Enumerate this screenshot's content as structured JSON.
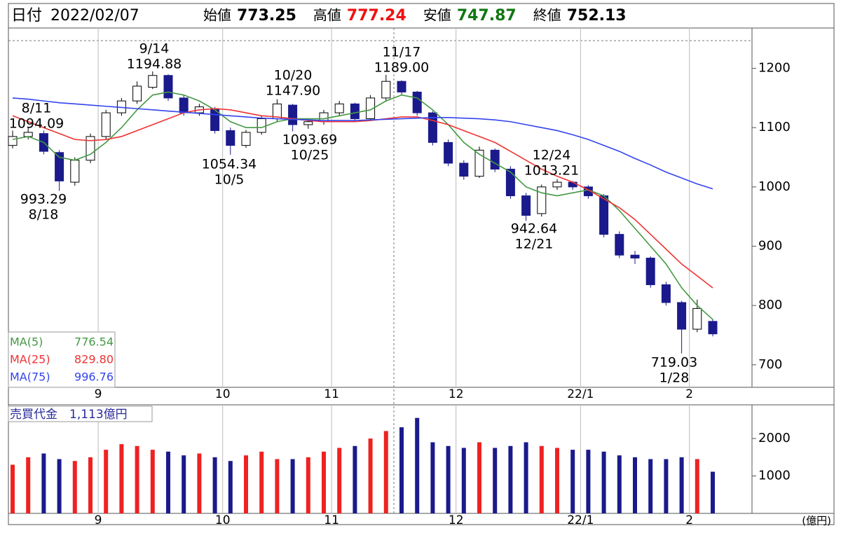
{
  "header": {
    "date_label": "日付",
    "date": "2022/02/07",
    "fields": [
      {
        "label": "始値",
        "value": 773.25,
        "color": "#000000"
      },
      {
        "label": "高値",
        "value": 777.24,
        "color": "#ee1111"
      },
      {
        "label": "安値",
        "value": 747.87,
        "color": "#117711"
      },
      {
        "label": "終値",
        "value": 752.13,
        "color": "#000000"
      }
    ]
  },
  "chart_data": [
    {
      "type": "candlestick",
      "categories": [
        null,
        null,
        null,
        null,
        null,
        null,
        "9",
        null,
        null,
        null,
        null,
        null,
        null,
        null,
        "10",
        null,
        null,
        null,
        null,
        null,
        null,
        "11",
        null,
        null,
        null,
        null,
        null,
        null,
        null,
        "12",
        null,
        null,
        null,
        null,
        null,
        null,
        null,
        "22/1",
        null,
        null,
        null,
        null,
        null,
        null,
        "2",
        null
      ],
      "open": [
        1070,
        1085,
        1090,
        1058,
        1008,
        1045,
        1085,
        1125,
        1145,
        1168,
        1188,
        1150,
        1125,
        1132,
        1095,
        1070,
        1092,
        1115,
        1138,
        1105,
        1110,
        1125,
        1140,
        1115,
        1150,
        1178,
        1160,
        1125,
        1075,
        1040,
        1018,
        1062,
        1030,
        985,
        955,
        1000,
        1008,
        1000,
        985,
        920,
        885,
        880,
        835,
        805,
        760,
        773.25
      ],
      "high": [
        1095,
        1100,
        1095,
        1062,
        1050,
        1090,
        1130,
        1150,
        1178,
        1194.88,
        1190,
        1155,
        1140,
        1135,
        1100,
        1096,
        1120,
        1147.9,
        1140,
        1115,
        1130,
        1145,
        1142,
        1155,
        1189,
        1180,
        1162,
        1128,
        1080,
        1045,
        1068,
        1065,
        1035,
        990,
        1004,
        1013.21,
        1010,
        1003,
        988,
        925,
        892,
        883,
        840,
        808,
        810,
        777.24
      ],
      "low": [
        1065,
        1080,
        1055,
        993.29,
        1002,
        1040,
        1080,
        1120,
        1140,
        1165,
        1145,
        1120,
        1120,
        1090,
        1054.34,
        1066,
        1088,
        1110,
        1093.69,
        1098,
        1105,
        1120,
        1110,
        1112,
        1145,
        1155,
        1120,
        1070,
        1035,
        1012,
        1015,
        1025,
        980,
        942.64,
        950,
        995,
        995,
        980,
        915,
        880,
        870,
        830,
        800,
        719.03,
        755,
        747.87
      ],
      "close": [
        1085,
        1092,
        1060,
        1010,
        1045,
        1085,
        1125,
        1145,
        1170,
        1188,
        1150,
        1125,
        1135,
        1095,
        1070,
        1092,
        1115,
        1140,
        1105,
        1110,
        1125,
        1140,
        1115,
        1150,
        1178,
        1160,
        1125,
        1075,
        1040,
        1018,
        1062,
        1030,
        985,
        952,
        1000,
        1008,
        1000,
        985,
        920,
        885,
        880,
        835,
        805,
        760,
        795,
        752.13
      ],
      "up_color": "#ffffff",
      "down_color": "#1a1a8c",
      "series": [
        {
          "name": "MA(5)",
          "color": "#449944",
          "legend_value": "776.54",
          "values": [
            1080,
            1085,
            1075,
            1050,
            1045,
            1055,
            1075,
            1100,
            1130,
            1155,
            1160,
            1155,
            1145,
            1130,
            1110,
            1100,
            1100,
            1110,
            1115,
            1115,
            1115,
            1120,
            1125,
            1130,
            1145,
            1155,
            1150,
            1130,
            1105,
            1075,
            1055,
            1040,
            1025,
            1000,
            990,
            985,
            990,
            995,
            985,
            960,
            930,
            900,
            870,
            830,
            800,
            776.54
          ]
        },
        {
          "name": "MA(25)",
          "color": "#ee3333",
          "legend_value": "829.80",
          "values": [
            1120,
            1110,
            1100,
            1090,
            1080,
            1078,
            1080,
            1085,
            1095,
            1105,
            1115,
            1125,
            1130,
            1132,
            1130,
            1125,
            1120,
            1118,
            1115,
            1112,
            1110,
            1110,
            1110,
            1112,
            1115,
            1118,
            1118,
            1112,
            1105,
            1095,
            1085,
            1075,
            1060,
            1045,
            1030,
            1018,
            1008,
            995,
            980,
            965,
            945,
            920,
            895,
            870,
            850,
            829.8
          ]
        },
        {
          "name": "MA(75)",
          "color": "#3344ee",
          "legend_value": "996.76",
          "values": [
            1150,
            1148,
            1145,
            1142,
            1140,
            1138,
            1136,
            1134,
            1132,
            1130,
            1128,
            1126,
            1124,
            1122,
            1120,
            1118,
            1116,
            1115,
            1114,
            1113,
            1112,
            1112,
            1112,
            1113,
            1114,
            1115,
            1116,
            1117,
            1117,
            1116,
            1115,
            1113,
            1110,
            1105,
            1100,
            1095,
            1088,
            1080,
            1070,
            1060,
            1048,
            1037,
            1025,
            1015,
            1005,
            996.76
          ]
        }
      ],
      "ylim": [
        662,
        1268
      ],
      "yticks": [
        700,
        800,
        900,
        1000,
        1100,
        1200
      ],
      "annotations": [
        {
          "date": "8/11",
          "price": "1094.09"
        },
        {
          "date": "8/18",
          "price": "993.29"
        },
        {
          "date": "9/14",
          "price": "1194.88"
        },
        {
          "date": "10/5",
          "price": "1054.34"
        },
        {
          "date": "10/20",
          "price": "1147.90"
        },
        {
          "date": "10/25",
          "price": "1093.69"
        },
        {
          "date": "11/17",
          "price": "1189.00"
        },
        {
          "date": "12/21",
          "price": "942.64"
        },
        {
          "date": "12/24",
          "price": "1013.21"
        },
        {
          "date": "1/28",
          "price": "719.03"
        }
      ]
    },
    {
      "type": "bar",
      "title": "売買代金　1,113億円",
      "unit": "(億円)",
      "categories": [
        null,
        null,
        null,
        null,
        null,
        null,
        "9",
        null,
        null,
        null,
        null,
        null,
        null,
        null,
        "10",
        null,
        null,
        null,
        null,
        null,
        null,
        "11",
        null,
        null,
        null,
        null,
        null,
        null,
        null,
        "12",
        null,
        null,
        null,
        null,
        null,
        null,
        null,
        "22/1",
        null,
        null,
        null,
        null,
        null,
        null,
        "2",
        null
      ],
      "values": [
        1300,
        1500,
        1600,
        1450,
        1400,
        1500,
        1700,
        1850,
        1800,
        1700,
        1650,
        1550,
        1600,
        1500,
        1400,
        1550,
        1650,
        1450,
        1450,
        1500,
        1650,
        1750,
        1800,
        2000,
        2200,
        2300,
        2550,
        1900,
        1800,
        1750,
        1900,
        1750,
        1800,
        1900,
        1800,
        1750,
        1700,
        1700,
        1650,
        1550,
        1500,
        1450,
        1450,
        1500,
        1450,
        1113
      ],
      "ylim": [
        0,
        2900
      ],
      "yticks": [
        1000,
        2000
      ]
    }
  ]
}
